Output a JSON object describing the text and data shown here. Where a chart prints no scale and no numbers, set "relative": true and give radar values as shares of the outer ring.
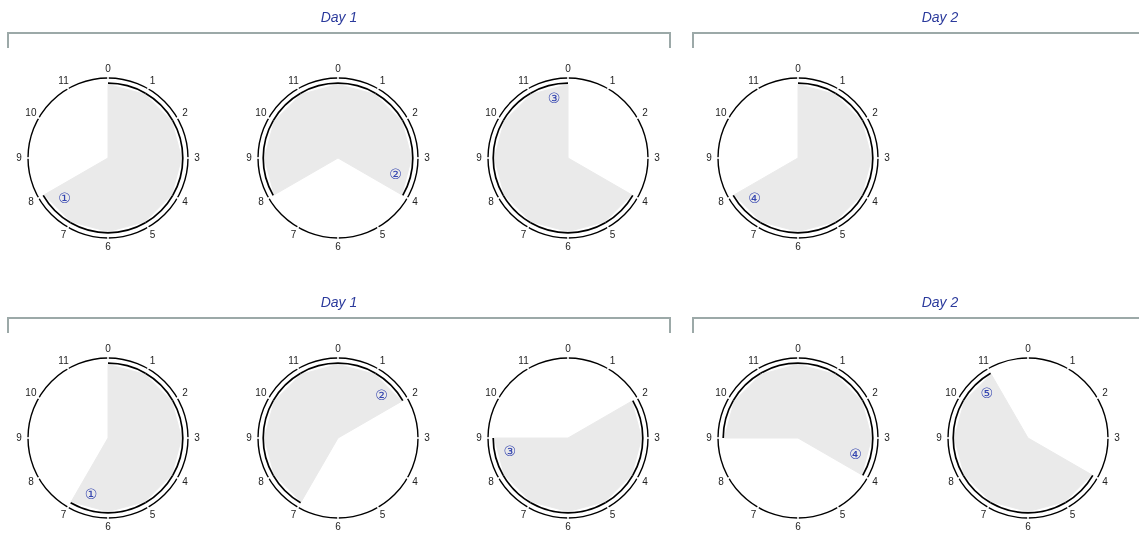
{
  "chart_data": [
    {
      "type": "other",
      "title": "Day 1"
    },
    {
      "type": "other",
      "title": "Day 2"
    },
    {
      "type": "radar",
      "categories": [
        "0",
        "1",
        "2",
        "3",
        "4",
        "5",
        "6",
        "7",
        "8",
        "9",
        "10",
        "11"
      ],
      "relative": true,
      "series": [
        {
          "name": "①",
          "color": "#eaeaea",
          "values": [
            0.92,
            0.92,
            0.92,
            0.92,
            0.92,
            0.92,
            0.92,
            0.92,
            0.92,
            0,
            0,
            0
          ]
        }
      ]
    },
    {
      "type": "radar",
      "categories": [
        "0",
        "1",
        "2",
        "3",
        "4",
        "5",
        "6",
        "7",
        "8",
        "9",
        "10",
        "11"
      ],
      "relative": true,
      "series": [
        {
          "name": "②",
          "color": "#eaeaea",
          "values": [
            0.92,
            0.92,
            0.92,
            0.92,
            0.92,
            0,
            0,
            0,
            0.92,
            0.92,
            0.92,
            0.92
          ]
        }
      ]
    },
    {
      "type": "radar",
      "categories": [
        "0",
        "1",
        "2",
        "3",
        "4",
        "5",
        "6",
        "7",
        "8",
        "9",
        "10",
        "11"
      ],
      "relative": true,
      "series": [
        {
          "name": "③",
          "color": "#eaeaea",
          "values": [
            0.92,
            0,
            0,
            0,
            0.92,
            0.92,
            0.92,
            0.92,
            0.92,
            0.92,
            0.92,
            0.92
          ]
        }
      ]
    },
    {
      "type": "radar",
      "categories": [
        "0",
        "1",
        "2",
        "3",
        "4",
        "5",
        "6",
        "7",
        "8",
        "9",
        "10",
        "11"
      ],
      "relative": true,
      "series": [
        {
          "name": "④",
          "color": "#eaeaea",
          "values": [
            0.92,
            0.92,
            0.92,
            0.92,
            0.92,
            0.92,
            0.92,
            0.92,
            0.92,
            0,
            0,
            0
          ]
        }
      ]
    },
    {
      "type": "other",
      "title": "Day 1"
    },
    {
      "type": "other",
      "title": "Day 2"
    },
    {
      "type": "radar",
      "categories": [
        "0",
        "1",
        "2",
        "3",
        "4",
        "5",
        "6",
        "7",
        "8",
        "9",
        "10",
        "11"
      ],
      "relative": true,
      "series": [
        {
          "name": "①",
          "color": "#eaeaea",
          "values": [
            0.92,
            0.92,
            0.92,
            0.92,
            0.92,
            0.92,
            0.92,
            0.92,
            0,
            0,
            0,
            0
          ]
        }
      ]
    },
    {
      "type": "radar",
      "categories": [
        "0",
        "1",
        "2",
        "3",
        "4",
        "5",
        "6",
        "7",
        "8",
        "9",
        "10",
        "11"
      ],
      "relative": true,
      "series": [
        {
          "name": "②",
          "color": "#eaeaea",
          "values": [
            0.92,
            0.92,
            0.92,
            0,
            0,
            0,
            0,
            0.92,
            0.92,
            0.92,
            0.92,
            0.92
          ]
        }
      ]
    },
    {
      "type": "radar",
      "categories": [
        "0",
        "1",
        "2",
        "3",
        "4",
        "5",
        "6",
        "7",
        "8",
        "9",
        "10",
        "11"
      ],
      "relative": true,
      "series": [
        {
          "name": "③",
          "color": "#eaeaea",
          "values": [
            0,
            0,
            0.92,
            0.92,
            0.92,
            0.92,
            0.92,
            0.92,
            0.92,
            0.92,
            0,
            0
          ]
        }
      ]
    },
    {
      "type": "radar",
      "categories": [
        "0",
        "1",
        "2",
        "3",
        "4",
        "5",
        "6",
        "7",
        "8",
        "9",
        "10",
        "11"
      ],
      "relative": true,
      "series": [
        {
          "name": "④",
          "color": "#eaeaea",
          "values": [
            0.92,
            0.92,
            0.92,
            0.92,
            0.92,
            0,
            0,
            0,
            0,
            0.92,
            0.92,
            0.92
          ]
        }
      ]
    },
    {
      "type": "radar",
      "categories": [
        "0",
        "1",
        "2",
        "3",
        "4",
        "5",
        "6",
        "7",
        "8",
        "9",
        "10",
        "11"
      ],
      "relative": true,
      "series": [
        {
          "name": "⑤",
          "color": "#eaeaea",
          "values": [
            0,
            0,
            0,
            0,
            0.92,
            0.92,
            0.92,
            0.92,
            0.92,
            0.92,
            0.92,
            0.92
          ]
        }
      ]
    }
  ]
}
